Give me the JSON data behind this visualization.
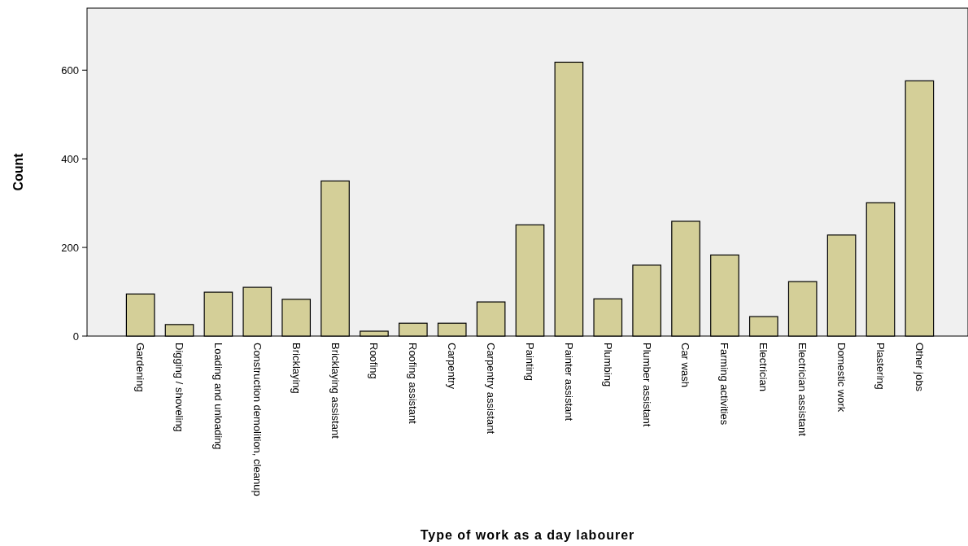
{
  "chart_data": {
    "type": "bar",
    "xlabel": "Type of work as a day labourer",
    "ylabel": "Count",
    "categories": [
      "Gardening",
      "Digging / shoveling",
      "Loading and unloading",
      "Construction demolition, cleanup",
      "Bricklaying",
      "Bricklaying assistant",
      "Roofing",
      "Roofing assistant",
      "Carpentry",
      "Carpentry assistant",
      "Painting",
      "Painter assistant",
      "Plumbing",
      "Plumber assistant",
      "Car wash",
      "Farming activities",
      "Electrician",
      "Electrician assistant",
      "Domestic work",
      "Plastering",
      "Other jobs"
    ],
    "values": [
      95,
      26,
      99,
      110,
      83,
      350,
      11,
      29,
      29,
      77,
      251,
      618,
      84,
      160,
      259,
      183,
      44,
      123,
      228,
      301,
      576
    ],
    "color": "#d4cf98",
    "ylim": [
      0,
      740
    ],
    "yticks": [
      0,
      200,
      400,
      600
    ],
    "grid": false
  }
}
